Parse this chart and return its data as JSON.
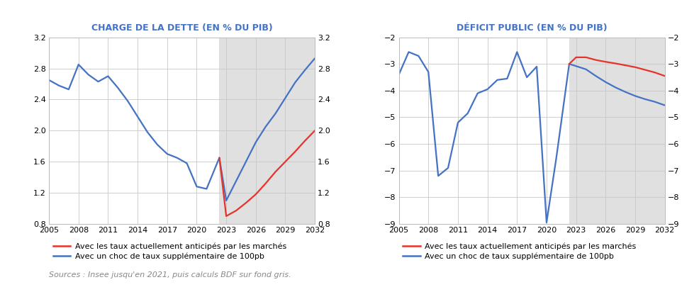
{
  "chart1_title": "CHARGE DE LA DETTE (EN % DU PIB)",
  "chart2_title": "DÉFICIT PUBLIC (EN % DU PIB)",
  "legend1": "Avec les taux actuellement anticipés par les marchés",
  "legend2": "Avec un choc de taux supplémentaire de 100pb",
  "source": "Sources : Insee jusqu'en 2021, puis calculs BDF sur fond gris.",
  "forecast_start": 2022.3,
  "chart1": {
    "years_hist": [
      2005,
      2006,
      2007,
      2008,
      2009,
      2010,
      2011,
      2012,
      2013,
      2014,
      2015,
      2016,
      2017,
      2018,
      2019,
      2020,
      2021,
      2022.3
    ],
    "blue_hist": [
      2.65,
      2.58,
      2.53,
      2.85,
      2.72,
      2.63,
      2.7,
      2.55,
      2.38,
      2.18,
      1.98,
      1.82,
      1.7,
      1.65,
      1.58,
      1.28,
      1.25,
      1.65
    ],
    "years_fore": [
      2022.3,
      2023,
      2024,
      2025,
      2026,
      2027,
      2028,
      2029,
      2030,
      2031,
      2032
    ],
    "red_fore": [
      1.65,
      0.9,
      0.97,
      1.07,
      1.18,
      1.32,
      1.47,
      1.6,
      1.73,
      1.87,
      2.0
    ],
    "blue_fore": [
      1.65,
      1.1,
      1.35,
      1.6,
      1.85,
      2.05,
      2.22,
      2.42,
      2.62,
      2.78,
      2.93
    ],
    "ylim": [
      0.8,
      3.2
    ],
    "yticks": [
      0.8,
      1.2,
      1.6,
      2.0,
      2.4,
      2.8,
      3.2
    ],
    "xlim": [
      2005,
      2032
    ],
    "xticks": [
      2005,
      2008,
      2011,
      2014,
      2017,
      2020,
      2023,
      2026,
      2029,
      2032
    ]
  },
  "chart2": {
    "years_hist": [
      2005,
      2006,
      2007,
      2008,
      2009,
      2010,
      2011,
      2012,
      2013,
      2014,
      2015,
      2016,
      2017,
      2018,
      2019,
      2020,
      2021,
      2022.3
    ],
    "blue_hist": [
      -3.4,
      -2.55,
      -2.7,
      -3.3,
      -7.2,
      -6.9,
      -5.2,
      -4.85,
      -4.1,
      -3.95,
      -3.6,
      -3.55,
      -2.55,
      -3.5,
      -3.1,
      -8.95,
      -6.5,
      -3.0
    ],
    "years_fore": [
      2022.3,
      2023,
      2024,
      2025,
      2026,
      2027,
      2028,
      2029,
      2030,
      2031,
      2032
    ],
    "red_fore": [
      -3.0,
      -2.75,
      -2.75,
      -2.85,
      -2.92,
      -2.98,
      -3.05,
      -3.12,
      -3.22,
      -3.32,
      -3.45
    ],
    "blue_fore": [
      -3.0,
      -3.08,
      -3.2,
      -3.45,
      -3.68,
      -3.88,
      -4.05,
      -4.2,
      -4.32,
      -4.42,
      -4.55
    ],
    "ylim": [
      -9,
      -2
    ],
    "yticks": [
      -9,
      -8,
      -7,
      -6,
      -5,
      -4,
      -3,
      -2
    ],
    "xlim": [
      2005,
      2032
    ],
    "xticks": [
      2005,
      2008,
      2011,
      2014,
      2017,
      2020,
      2023,
      2026,
      2029,
      2032
    ]
  },
  "color_red": "#e8322a",
  "color_blue": "#4472c4",
  "color_forecast_bg": "#e0e0e0",
  "title_color": "#4472c4",
  "source_color": "#888888",
  "background_color": "#ffffff",
  "grid_color": "#c8c8c8"
}
